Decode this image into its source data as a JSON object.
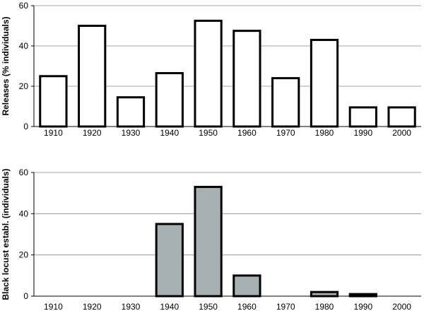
{
  "chart_data": [
    {
      "type": "bar",
      "categories": [
        "1910",
        "1920",
        "1930",
        "1940",
        "1950",
        "1960",
        "1970",
        "1980",
        "1990",
        "2000"
      ],
      "values": [
        25,
        50,
        14.5,
        26.5,
        52.5,
        47.5,
        24,
        43,
        9.5,
        9.5
      ],
      "xlabel": "",
      "ylabel": "Releases (% individuals)",
      "ylim": [
        0,
        60
      ],
      "yticks": [
        0,
        20,
        40,
        60
      ],
      "bar_fill": "#ffffff",
      "grid": true
    },
    {
      "type": "bar",
      "categories": [
        "1910",
        "1920",
        "1930",
        "1940",
        "1950",
        "1960",
        "1970",
        "1980",
        "1990",
        "2000"
      ],
      "values": [
        0,
        0,
        0,
        35,
        53,
        10,
        0,
        2,
        1,
        0
      ],
      "xlabel": "",
      "ylabel": "Black locust establ. (individuals)",
      "ylim": [
        0,
        60
      ],
      "yticks": [
        0,
        20,
        40,
        60
      ],
      "bar_fill": "#a7b1b4",
      "grid": true
    }
  ]
}
